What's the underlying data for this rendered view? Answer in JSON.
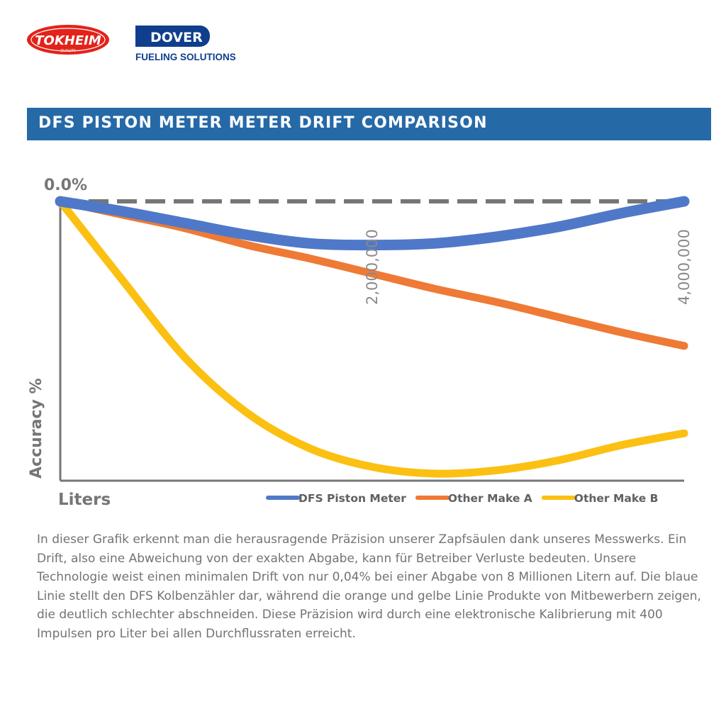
{
  "logos": {
    "tokheim": "TOKHEIM",
    "tokheim_sub": "QUALITY",
    "dover": "DOVER",
    "dover_sub": "FUELING SOLUTIONS"
  },
  "banner": {
    "title": "DFS PISTON METER METER DRIFT COMPARISON",
    "color": "#2669a7"
  },
  "chart_data": {
    "type": "line",
    "title": "",
    "xlabel": "Liters",
    "ylabel": "Accuracy %",
    "xlim": [
      0,
      4000000
    ],
    "x_ticks": [
      {
        "value": 2000000,
        "label": "2,000,000"
      },
      {
        "value": 4000000,
        "label": "4,000,000"
      }
    ],
    "y_top_label": "0.0%",
    "baseline": {
      "y": 0,
      "style": "dashed"
    },
    "legend_position": "bottom-right",
    "series": [
      {
        "name": "DFS Piston Meter",
        "color": "#4f79c8",
        "x": [
          0,
          400000,
          800000,
          1200000,
          1600000,
          2000000,
          2400000,
          2800000,
          3200000,
          3600000,
          4000000
        ],
        "y": [
          0,
          -0.06,
          -0.13,
          -0.2,
          -0.25,
          -0.26,
          -0.25,
          -0.21,
          -0.15,
          -0.07,
          0
        ]
      },
      {
        "name": "Other Make A",
        "color": "#ee7a35",
        "x": [
          0,
          400000,
          800000,
          1200000,
          1600000,
          2000000,
          2400000,
          2800000,
          3200000,
          3600000,
          4000000
        ],
        "y": [
          0,
          -0.08,
          -0.16,
          -0.26,
          -0.34,
          -0.43,
          -0.52,
          -0.6,
          -0.69,
          -0.78,
          -0.86
        ]
      },
      {
        "name": "Other Make B",
        "color": "#fbc012",
        "x": [
          0,
          400000,
          800000,
          1200000,
          1600000,
          2000000,
          2400000,
          2800000,
          3200000,
          3600000,
          4000000
        ],
        "y": [
          0,
          -0.47,
          -0.93,
          -1.26,
          -1.47,
          -1.58,
          -1.62,
          -1.6,
          -1.54,
          -1.45,
          -1.38
        ]
      }
    ]
  },
  "description": "In dieser Grafik erkennt man die herausragende Präzision unserer Zapfsäulen dank unseres Messwerks. Ein Drift, also eine Abweichung von der exakten Abgabe, kann für Betreiber Verluste bedeuten. Unsere Technologie weist einen minimalen Drift von nur 0,04% bei einer Abgabe von 8 Millionen Litern auf. Die blaue Linie stellt den DFS Kolbenzähler dar, während die orange und gelbe Linie Produkte von Mitbewerbern zeigen, die deutlich schlechter abschneiden. Diese Präzision wird durch eine elektronische Kalibrierung mit 400 Impulsen pro Liter bei allen Durchflussraten erreicht."
}
